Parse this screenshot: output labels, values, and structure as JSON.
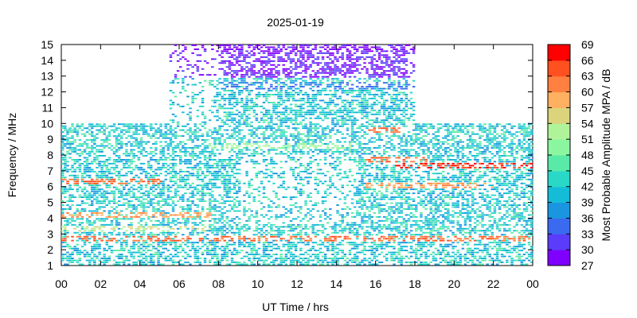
{
  "chart_data": {
    "type": "heatmap",
    "title": "2025-01-19",
    "xlabel": "UT Time / hrs",
    "ylabel": "Frequency / MHz",
    "colorbar_label": "Most Probable Amplitude MPA / dB",
    "xlim": [
      0,
      24
    ],
    "ylim": [
      1,
      15
    ],
    "clim": [
      27,
      69
    ],
    "x_ticks": [
      "00",
      "02",
      "04",
      "06",
      "08",
      "10",
      "12",
      "14",
      "16",
      "18",
      "20",
      "22",
      "00"
    ],
    "y_ticks": [
      "1",
      "2",
      "3",
      "4",
      "5",
      "6",
      "7",
      "8",
      "9",
      "10",
      "11",
      "12",
      "13",
      "14",
      "15"
    ],
    "colorbar_ticks": [
      "27",
      "30",
      "33",
      "36",
      "39",
      "42",
      "45",
      "48",
      "51",
      "54",
      "57",
      "60",
      "63",
      "66",
      "69"
    ],
    "colorbar_colors": [
      "#7f00ff",
      "#5a3cfa",
      "#3a6af0",
      "#1a96e0",
      "#14bcd8",
      "#2ad8c8",
      "#5aeaa8",
      "#8af6a0",
      "#b0f49a",
      "#dcd47c",
      "#ffb060",
      "#ff8040",
      "#ff5020",
      "#ff0000"
    ],
    "grid": false,
    "coverage": {
      "day_window_hours": [
        5.5,
        18
      ],
      "day_max_frequency_mhz": 15,
      "night_max_frequency_mhz": 10,
      "dominant_amplitude_db": 42
    },
    "bands": [
      {
        "frequency_mhz": 2.6,
        "hours": [
          0,
          24
        ],
        "amplitude_db": 63
      },
      {
        "frequency_mhz": 3.3,
        "hours": [
          0,
          7.5
        ],
        "amplitude_db": 54
      },
      {
        "frequency_mhz": 4.1,
        "hours": [
          0,
          7.5
        ],
        "amplitude_db": 60
      },
      {
        "frequency_mhz": 6.3,
        "hours": [
          0,
          5
        ],
        "amplitude_db": 63
      },
      {
        "frequency_mhz": 7.3,
        "hours": [
          17,
          24
        ],
        "amplitude_db": 66
      },
      {
        "frequency_mhz": 7.6,
        "hours": [
          15.5,
          18.5
        ],
        "amplitude_db": 63
      },
      {
        "frequency_mhz": 9.5,
        "hours": [
          15.5,
          17.5
        ],
        "amplitude_db": 63
      },
      {
        "frequency_mhz": 6.0,
        "hours": [
          15.5,
          22
        ],
        "amplitude_db": 60
      },
      {
        "frequency_mhz": 8.5,
        "hours": [
          7.5,
          15
        ],
        "amplitude_db": 51
      },
      {
        "frequency_mhz": 13.8,
        "hours": [
          5.5,
          18
        ],
        "amplitude_db": 30
      },
      {
        "frequency_mhz": 14.6,
        "hours": [
          5.5,
          18
        ],
        "amplitude_db": 28
      },
      {
        "frequency_mhz": 12.3,
        "hours": [
          8,
          18
        ],
        "amplitude_db": 36
      }
    ]
  }
}
